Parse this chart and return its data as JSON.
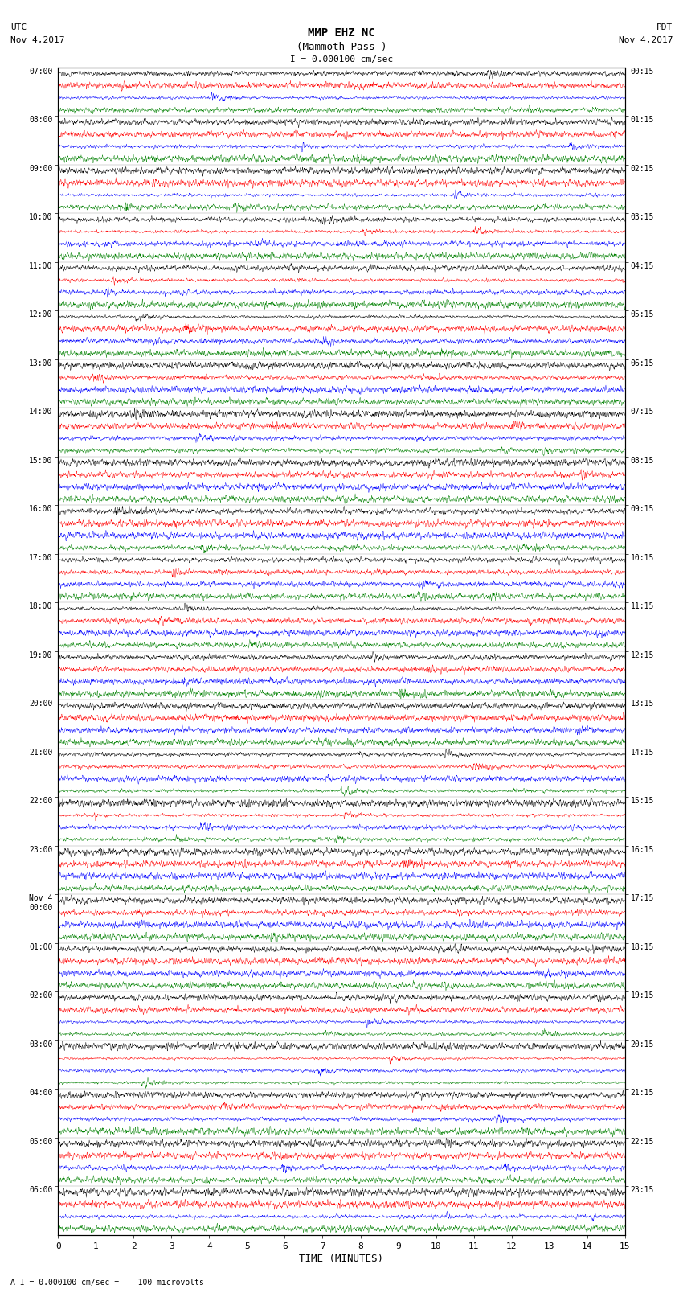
{
  "title_line1": "MMP EHZ NC",
  "title_line2": "(Mammoth Pass )",
  "scale_label": "I = 0.000100 cm/sec",
  "bottom_label": "A I = 0.000100 cm/sec =    100 microvolts",
  "xlabel": "TIME (MINUTES)",
  "utc_label": "UTC",
  "utc_date": "Nov 4,2017",
  "pdt_label": "PDT",
  "pdt_date": "Nov 4,2017",
  "left_times_utc": [
    "07:00",
    "08:00",
    "09:00",
    "10:00",
    "11:00",
    "12:00",
    "13:00",
    "14:00",
    "15:00",
    "16:00",
    "17:00",
    "18:00",
    "19:00",
    "20:00",
    "21:00",
    "22:00",
    "23:00",
    "Nov 4\n00:00",
    "01:00",
    "02:00",
    "03:00",
    "04:00",
    "05:00",
    "06:00"
  ],
  "right_times_pdt": [
    "00:15",
    "01:15",
    "02:15",
    "03:15",
    "04:15",
    "05:15",
    "06:15",
    "07:15",
    "08:15",
    "09:15",
    "10:15",
    "11:15",
    "12:15",
    "13:15",
    "14:15",
    "15:15",
    "16:15",
    "17:15",
    "18:15",
    "19:15",
    "20:15",
    "21:15",
    "22:15",
    "23:15"
  ],
  "n_rows": 24,
  "traces_per_row": 4,
  "colors": [
    "black",
    "red",
    "blue",
    "green"
  ],
  "bg_color": "white",
  "plot_bg": "white",
  "xmin": 0,
  "xmax": 15,
  "xticks": [
    0,
    1,
    2,
    3,
    4,
    5,
    6,
    7,
    8,
    9,
    10,
    11,
    12,
    13,
    14,
    15
  ],
  "noise_seed": 42,
  "fig_width": 8.5,
  "fig_height": 16.13
}
